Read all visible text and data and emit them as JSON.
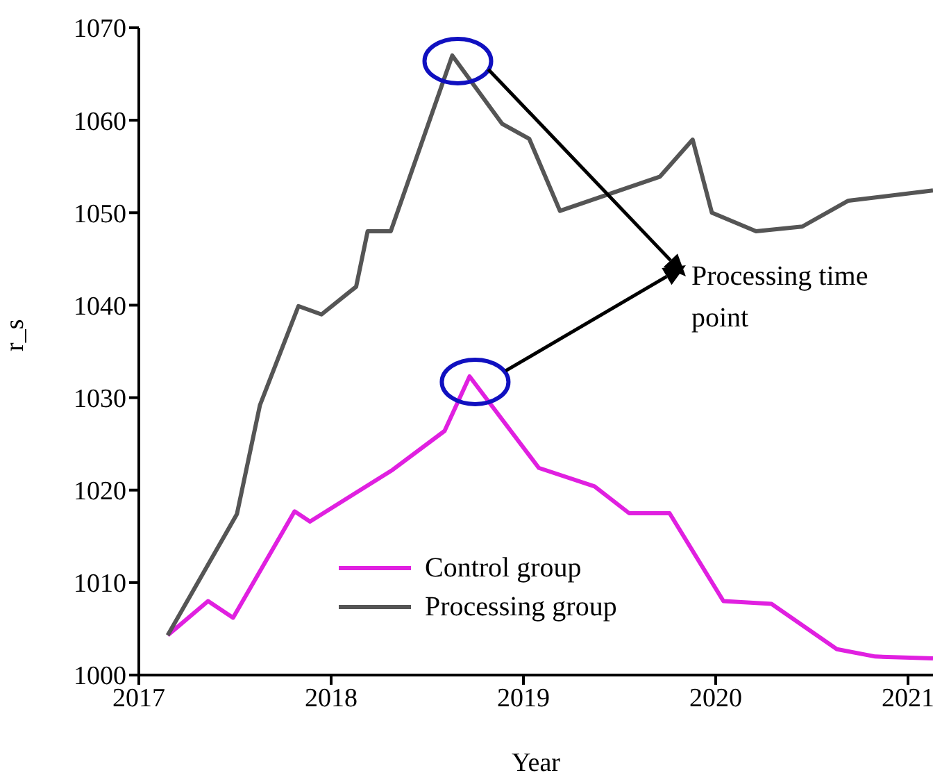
{
  "chart_data": {
    "type": "line",
    "xlabel": "Year",
    "ylabel": "r_s",
    "xlim": [
      2017,
      2021.13
    ],
    "xticks": [
      2017,
      2018,
      2019,
      2020,
      2021
    ],
    "ylim": [
      1000,
      1070
    ],
    "yticks": [
      1000,
      1010,
      1020,
      1030,
      1040,
      1050,
      1060,
      1070
    ],
    "grid": false,
    "legend": "bottom",
    "marker": "none",
    "line_style": "solid",
    "annotations": [
      "Processing time point"
    ],
    "series": [
      {
        "name": "Control group",
        "color": "#e020e0",
        "x": [
          2017.15,
          2017.36,
          2017.49,
          2017.81,
          2017.89,
          2018.32,
          2018.59,
          2018.72,
          2019.08,
          2019.37,
          2019.55,
          2019.76,
          2020.04,
          2020.29,
          2020.63,
          2020.83,
          2021.13
        ],
        "values": [
          1004.3,
          1008.0,
          1006.2,
          1017.7,
          1016.6,
          1022.2,
          1026.4,
          1032.3,
          1022.4,
          1020.4,
          1017.5,
          1017.5,
          1008.0,
          1007.7,
          1002.8,
          1002.0,
          1001.8
        ]
      },
      {
        "name": "Processing group",
        "color": "#555555",
        "x": [
          2017.15,
          2017.51,
          2017.63,
          2017.83,
          2017.95,
          2018.13,
          2018.19,
          2018.31,
          2018.63,
          2018.89,
          2019.03,
          2019.19,
          2019.71,
          2019.88,
          2019.98,
          2020.21,
          2020.45,
          2020.69,
          2021.13
        ],
        "values": [
          1004.3,
          1017.4,
          1029.2,
          1039.9,
          1039.0,
          1042.0,
          1048.0,
          1048.0,
          1067.0,
          1059.6,
          1058.0,
          1050.2,
          1053.9,
          1057.9,
          1050.0,
          1048.0,
          1048.5,
          1051.3,
          1052.4
        ]
      }
    ]
  }
}
